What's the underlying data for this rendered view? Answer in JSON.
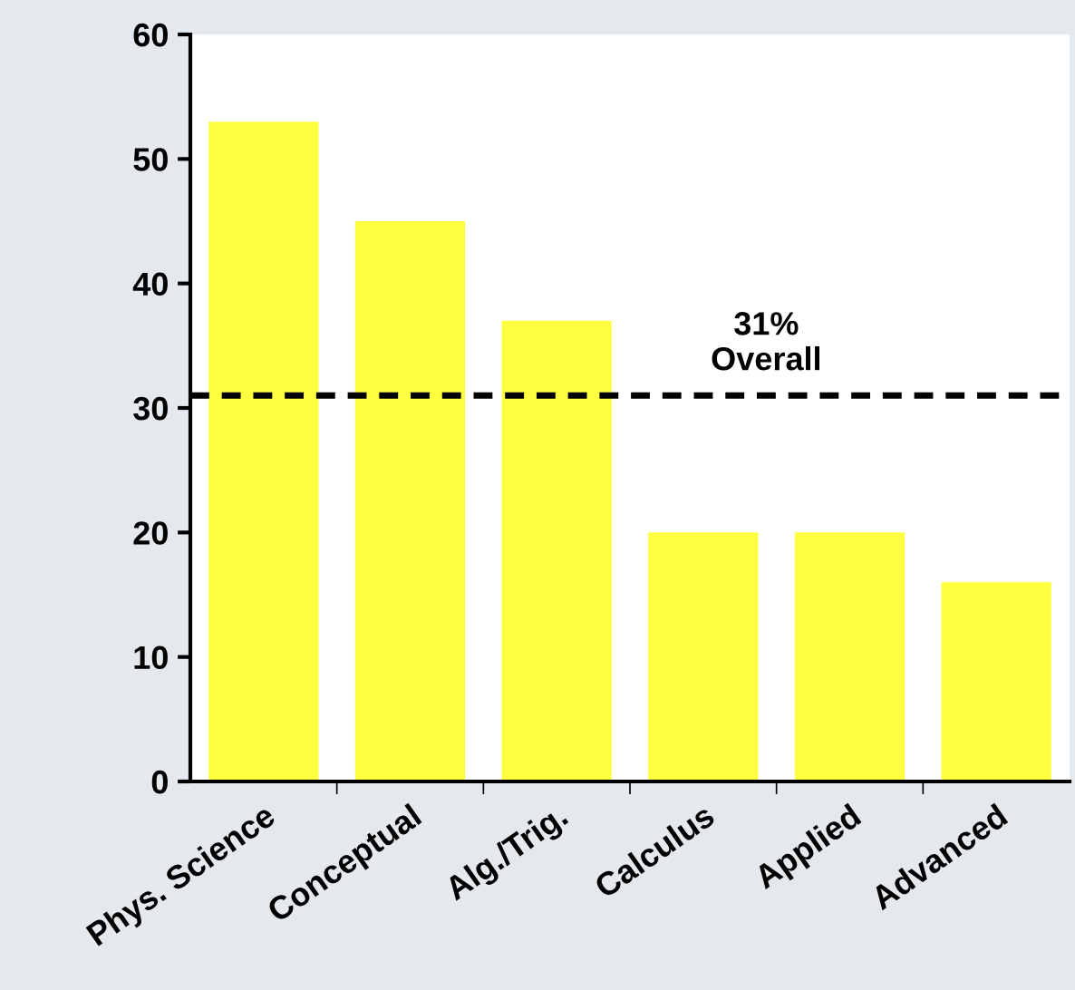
{
  "chart_data": {
    "type": "bar",
    "categories": [
      "Phys. Science",
      "Conceptual",
      "Alg./Trig.",
      "Calculus",
      "Applied",
      "Advanced"
    ],
    "values": [
      53,
      45,
      37,
      20,
      20,
      16
    ],
    "color": "#ffff40",
    "ylim": [
      0,
      60
    ],
    "yticks": [
      0,
      10,
      20,
      30,
      40,
      50,
      60
    ],
    "grid": false,
    "legend": false,
    "ref_lines": [
      {
        "axis": "y",
        "value": 31,
        "label": "31%\nOverall",
        "color": "#000000",
        "line_style": "dashed"
      }
    ]
  }
}
